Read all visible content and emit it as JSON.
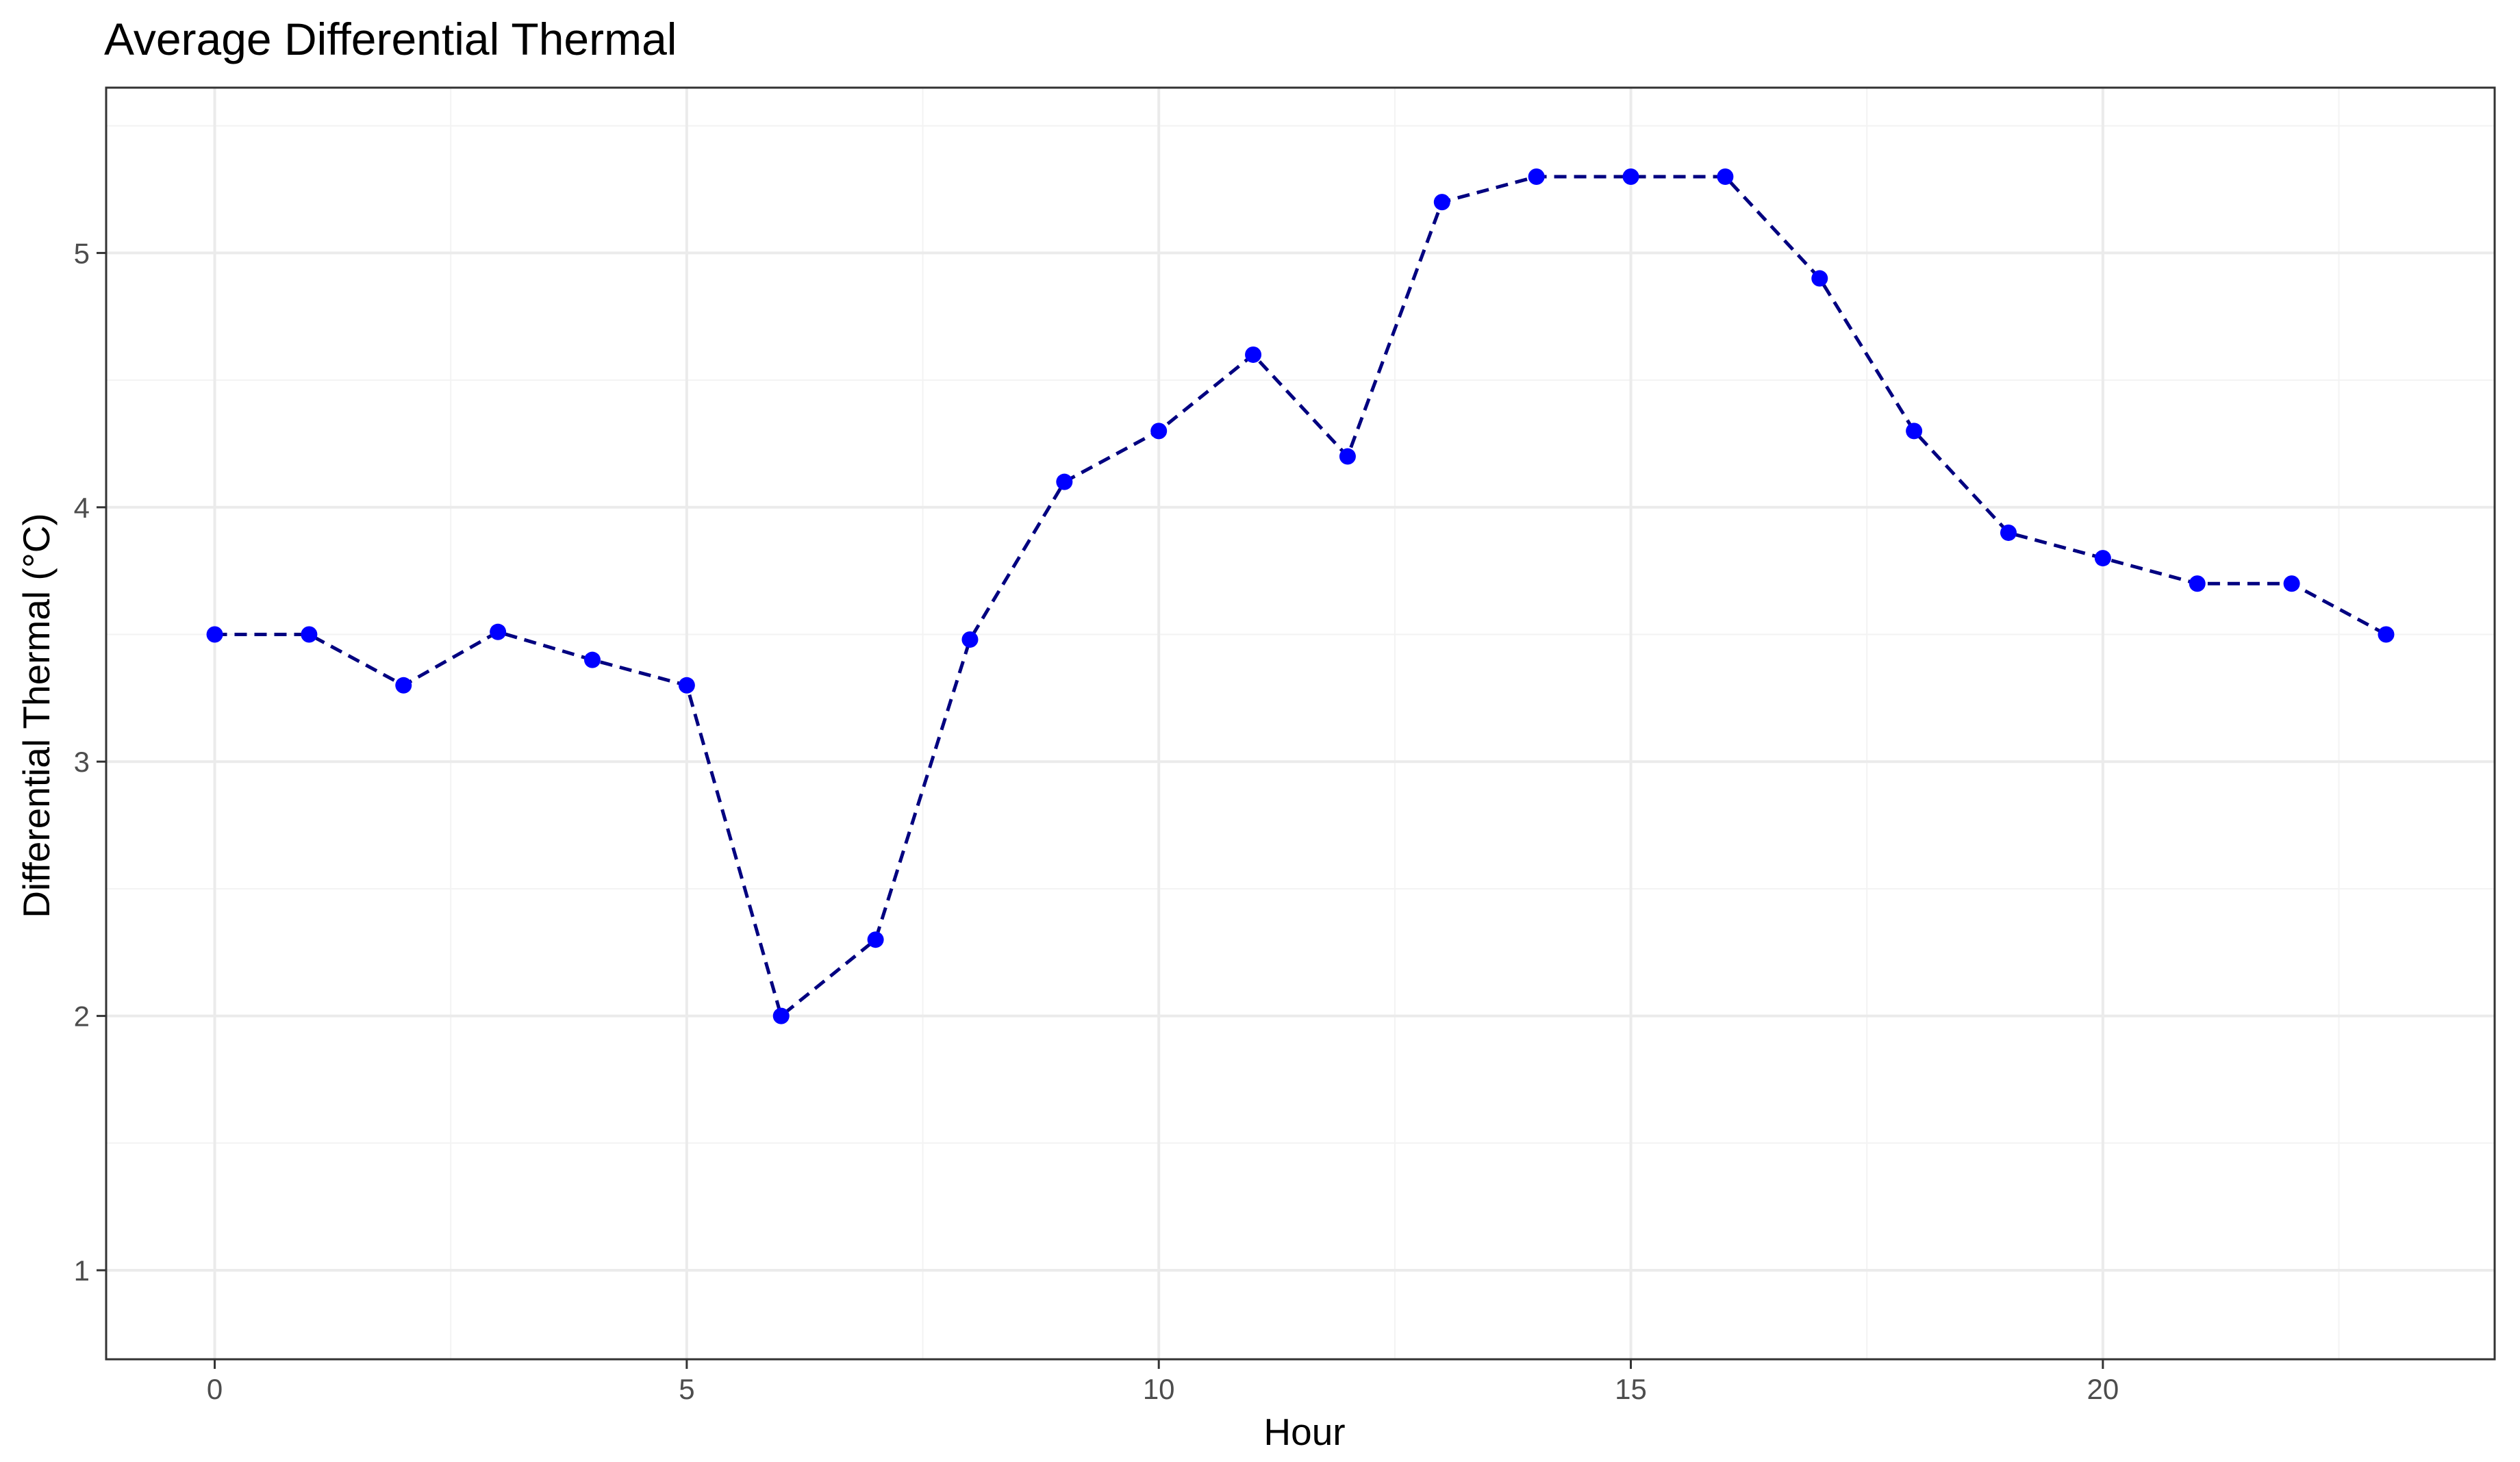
{
  "chart_data": {
    "type": "line",
    "title": "Average Differential Thermal",
    "xlabel": "Hour",
    "ylabel": "Differential Thermal (°C)",
    "x": [
      0,
      1,
      2,
      3,
      4,
      5,
      6,
      7,
      8,
      9,
      10,
      11,
      12,
      13,
      14,
      15,
      16,
      17,
      18,
      19,
      20,
      21,
      22,
      23
    ],
    "series": [
      {
        "values": [
          3.5,
          3.5,
          3.3,
          3.51,
          3.4,
          3.3,
          2.0,
          2.3,
          3.48,
          4.1,
          4.3,
          4.6,
          4.2,
          5.2,
          5.3,
          5.3,
          5.3,
          4.9,
          4.3,
          3.9,
          3.8,
          3.7,
          3.7,
          3.5
        ],
        "line_color": "#000080",
        "point_color": "#0000ff",
        "line_style": "dashed"
      }
    ],
    "xlim": [
      -1.15,
      24.15
    ],
    "ylim": [
      0.65,
      5.65
    ],
    "xticks": [
      0,
      5,
      10,
      15,
      20
    ],
    "yticks": [
      1,
      2,
      3,
      4,
      5
    ],
    "grid": true,
    "legend": "none"
  }
}
